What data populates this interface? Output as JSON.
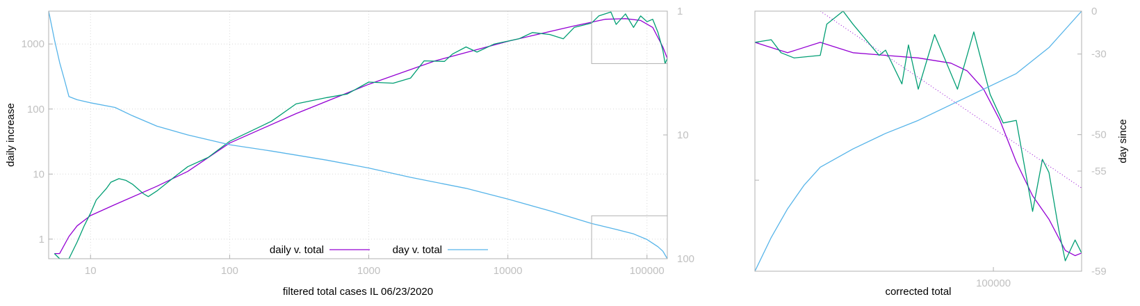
{
  "colors": {
    "fit": "#9400d3",
    "data": "#009e73",
    "day": "#56b4e9",
    "frame": "#b0b0b0",
    "tick_text": "#c0c0c0"
  },
  "chart_data": [
    {
      "type": "line",
      "xlabel": "filtered total cases IL 06/23/2020",
      "ylabel": "daily increase",
      "y2label": "",
      "xscale": "log",
      "yscale": "log",
      "y2scale": "log",
      "y2reversed": true,
      "xlim": [
        5,
        140000
      ],
      "ylim": [
        0.5,
        3200
      ],
      "y2lim": [
        1,
        100
      ],
      "grid": true,
      "legend_position": "bottom-center",
      "x_ticks": [
        "10",
        "100",
        "1000",
        "10000",
        "100000"
      ],
      "y_ticks": [
        "1",
        "10",
        "100",
        "1000"
      ],
      "y2_ticks": [
        "1",
        "10",
        "100"
      ],
      "series": [
        {
          "name": "daily v. total",
          "axis": "y",
          "color": "#9400d3",
          "points": [
            [
              5.5,
              0.6
            ],
            [
              6,
              0.6
            ],
            [
              7,
              1.1
            ],
            [
              8,
              1.6
            ],
            [
              10,
              2.3
            ],
            [
              15,
              3.4
            ],
            [
              30,
              6.5
            ],
            [
              50,
              11
            ],
            [
              100,
              30
            ],
            [
              300,
              85
            ],
            [
              1000,
              240
            ],
            [
              3000,
              550
            ],
            [
              10000,
              1100
            ],
            [
              30000,
              1900
            ],
            [
              50000,
              2400
            ],
            [
              70000,
              2450
            ],
            [
              90000,
              2300
            ],
            [
              110000,
              1800
            ],
            [
              130000,
              900
            ],
            [
              140000,
              600
            ]
          ]
        },
        {
          "name": "",
          "axis": "y",
          "color": "#009e73",
          "points": [
            [
              5.5,
              0.6
            ],
            [
              6,
              0.5
            ],
            [
              7,
              0.5
            ],
            [
              8,
              0.9
            ],
            [
              9,
              1.6
            ],
            [
              10,
              2.5
            ],
            [
              11,
              4
            ],
            [
              13,
              6
            ],
            [
              14,
              7.5
            ],
            [
              16,
              8.5
            ],
            [
              18,
              8
            ],
            [
              20,
              7
            ],
            [
              24,
              5
            ],
            [
              26,
              4.5
            ],
            [
              30,
              5.5
            ],
            [
              40,
              9
            ],
            [
              50,
              13
            ],
            [
              70,
              18
            ],
            [
              100,
              32
            ],
            [
              200,
              65
            ],
            [
              300,
              120
            ],
            [
              500,
              150
            ],
            [
              700,
              170
            ],
            [
              1000,
              260
            ],
            [
              1500,
              250
            ],
            [
              2000,
              300
            ],
            [
              2500,
              550
            ],
            [
              3500,
              540
            ],
            [
              4000,
              700
            ],
            [
              5000,
              900
            ],
            [
              6000,
              750
            ],
            [
              8000,
              1000
            ],
            [
              12000,
              1200
            ],
            [
              15000,
              1500
            ],
            [
              20000,
              1400
            ],
            [
              25000,
              1200
            ],
            [
              30000,
              1800
            ],
            [
              40000,
              2100
            ],
            [
              45000,
              2700
            ],
            [
              55000,
              3100
            ],
            [
              60000,
              2000
            ],
            [
              70000,
              2900
            ],
            [
              80000,
              1800
            ],
            [
              90000,
              2700
            ],
            [
              100000,
              2200
            ],
            [
              110000,
              2400
            ],
            [
              120000,
              1500
            ],
            [
              130000,
              800
            ],
            [
              135000,
              500
            ],
            [
              140000,
              600
            ]
          ]
        },
        {
          "name": "day v. total",
          "axis": "y2",
          "color": "#56b4e9",
          "points": [
            [
              5,
              1
            ],
            [
              5.5,
              1.7
            ],
            [
              6,
              2.6
            ],
            [
              6.5,
              3.6
            ],
            [
              7,
              4.9
            ],
            [
              8,
              5.2
            ],
            [
              10,
              5.5
            ],
            [
              15,
              6
            ],
            [
              20,
              7
            ],
            [
              30,
              8.5
            ],
            [
              50,
              10
            ],
            [
              100,
              12
            ],
            [
              200,
              13.5
            ],
            [
              500,
              16
            ],
            [
              1000,
              18.5
            ],
            [
              2000,
              22
            ],
            [
              5000,
              27
            ],
            [
              10000,
              33
            ],
            [
              20000,
              41
            ],
            [
              40000,
              52
            ],
            [
              60000,
              58
            ],
            [
              80000,
              63
            ],
            [
              100000,
              70
            ],
            [
              120000,
              80
            ],
            [
              130000,
              87
            ],
            [
              140000,
              100
            ]
          ]
        }
      ]
    },
    {
      "type": "line",
      "xlabel": "corrected total",
      "ylabel": "",
      "y2label": "day since",
      "x_ticks": [
        "100000"
      ],
      "y2_ticks": [
        "0",
        "-30",
        "-50",
        "-55",
        "-59"
      ],
      "grid": false,
      "series": [
        {
          "name": "",
          "color": "#9400d3",
          "points": [
            [
              0,
              0.88
            ],
            [
              0.05,
              0.86
            ],
            [
              0.1,
              0.84
            ],
            [
              0.2,
              0.88
            ],
            [
              0.3,
              0.84
            ],
            [
              0.4,
              0.83
            ],
            [
              0.5,
              0.82
            ],
            [
              0.6,
              0.8
            ],
            [
              0.65,
              0.77
            ],
            [
              0.7,
              0.7
            ],
            [
              0.75,
              0.58
            ],
            [
              0.8,
              0.42
            ],
            [
              0.85,
              0.29
            ],
            [
              0.9,
              0.2
            ],
            [
              0.95,
              0.08
            ],
            [
              0.98,
              0.06
            ],
            [
              1,
              0.07
            ]
          ]
        },
        {
          "name": "",
          "color": "#009e73",
          "points": [
            [
              0,
              0.88
            ],
            [
              0.05,
              0.89
            ],
            [
              0.08,
              0.84
            ],
            [
              0.12,
              0.82
            ],
            [
              0.2,
              0.83
            ],
            [
              0.22,
              0.95
            ],
            [
              0.27,
              1.0
            ],
            [
              0.3,
              0.95
            ],
            [
              0.38,
              0.83
            ],
            [
              0.4,
              0.85
            ],
            [
              0.45,
              0.72
            ],
            [
              0.47,
              0.87
            ],
            [
              0.5,
              0.7
            ],
            [
              0.55,
              0.91
            ],
            [
              0.58,
              0.82
            ],
            [
              0.62,
              0.7
            ],
            [
              0.67,
              0.92
            ],
            [
              0.72,
              0.68
            ],
            [
              0.76,
              0.57
            ],
            [
              0.8,
              0.58
            ],
            [
              0.85,
              0.23
            ],
            [
              0.88,
              0.43
            ],
            [
              0.9,
              0.38
            ],
            [
              0.93,
              0.16
            ],
            [
              0.95,
              0.04
            ],
            [
              0.98,
              0.12
            ],
            [
              1,
              0.07
            ]
          ]
        },
        {
          "name": "",
          "color": "#56b4e9",
          "points": [
            [
              0,
              0.0
            ],
            [
              0.05,
              0.13
            ],
            [
              0.1,
              0.24
            ],
            [
              0.15,
              0.33
            ],
            [
              0.2,
              0.4
            ],
            [
              0.3,
              0.47
            ],
            [
              0.4,
              0.53
            ],
            [
              0.5,
              0.58
            ],
            [
              0.6,
              0.64
            ],
            [
              0.7,
              0.7
            ],
            [
              0.8,
              0.76
            ],
            [
              0.9,
              0.86
            ],
            [
              1,
              1.0
            ]
          ]
        },
        {
          "name": "",
          "color": "#9400d3",
          "dashed": true,
          "points": [
            [
              0.2,
              1.0
            ],
            [
              1,
              0.32
            ]
          ]
        }
      ]
    }
  ]
}
